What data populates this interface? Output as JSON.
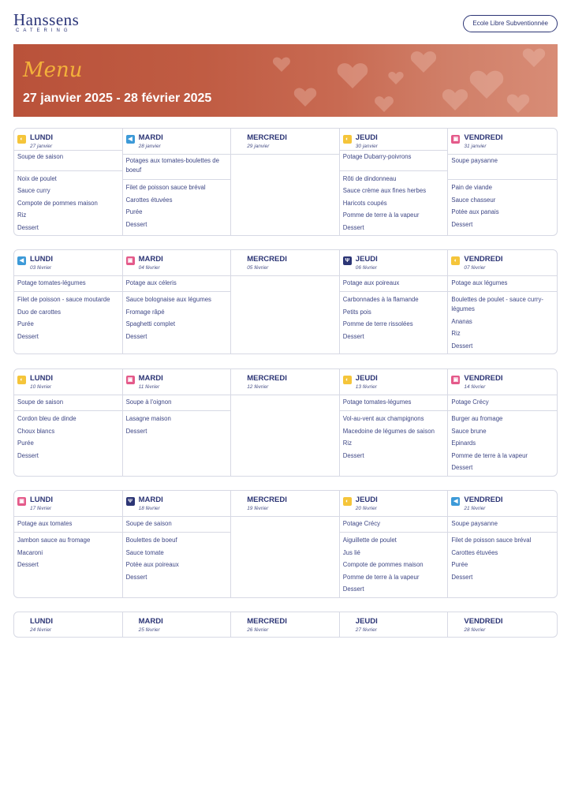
{
  "brand": {
    "name": "Hanssens",
    "sub": "CATERING"
  },
  "school": "Ecole Libre Subventionnée",
  "banner": {
    "title": "Menu",
    "dates": "27 janvier 2025 - 28 février 2025"
  },
  "weeks": [
    {
      "days": [
        {
          "name": "LUNDI",
          "date": "27 janvier",
          "icon": "y",
          "soup": "Soupe de saison",
          "dishes": [
            "Noix de poulet",
            "Sauce curry",
            "Compote de pommes maison",
            "Riz",
            "Dessert"
          ]
        },
        {
          "name": "MARDI",
          "date": "28 janvier",
          "icon": "b",
          "soup": "Potages aux tomates-boulettes de boeuf",
          "dishes": [
            "Filet de poisson sauce bréval",
            "Carottes étuvées",
            "Purée",
            "Dessert"
          ]
        },
        {
          "name": "MERCREDI",
          "date": "29 janvier",
          "icon": "",
          "soup": "",
          "dishes": []
        },
        {
          "name": "JEUDI",
          "date": "30 janvier",
          "icon": "y",
          "soup": "Potage Dubarry-poivrons",
          "dishes": [
            "Rôti de dindonneau",
            "Sauce crème aux fines herbes",
            "Haricots coupés",
            "Pomme de terre à la vapeur",
            "Dessert"
          ]
        },
        {
          "name": "VENDREDI",
          "date": "31 janvier",
          "icon": "p",
          "soup": "Soupe paysanne",
          "dishes": [
            "Pain de viande",
            "Sauce chasseur",
            "Potée aux panais",
            "Dessert"
          ]
        }
      ]
    },
    {
      "days": [
        {
          "name": "LUNDI",
          "date": "03 février",
          "icon": "b",
          "soup": "Potage tomates-légumes",
          "dishes": [
            "Filet de poisson - sauce moutarde",
            "Duo de carottes",
            "Purée",
            "Dessert"
          ]
        },
        {
          "name": "MARDI",
          "date": "04 février",
          "icon": "p",
          "soup": "Potage aux céleris",
          "dishes": [
            "Sauce bolognaise aux légumes",
            "Fromage râpé",
            "Spaghetti complet",
            "Dessert"
          ]
        },
        {
          "name": "MERCREDI",
          "date": "05 février",
          "icon": "",
          "soup": "",
          "dishes": []
        },
        {
          "name": "JEUDI",
          "date": "06 février",
          "icon": "n",
          "soup": "Potage aux poireaux",
          "dishes": [
            "Carbonnades à la flamande",
            "Petits pois",
            "Pomme de terre rissolées",
            "Dessert"
          ]
        },
        {
          "name": "VENDREDI",
          "date": "07 février",
          "icon": "y",
          "soup": "Potage aux légumes",
          "dishes": [
            "Boulettes de poulet - sauce curry-légumes",
            "Ananas",
            "Riz",
            "Dessert"
          ]
        }
      ]
    },
    {
      "days": [
        {
          "name": "LUNDI",
          "date": "10 février",
          "icon": "y",
          "soup": "Soupe de saison",
          "dishes": [
            "Cordon bleu de dinde",
            "Choux blancs",
            "Purée",
            "Dessert"
          ]
        },
        {
          "name": "MARDI",
          "date": "11 février",
          "icon": "p",
          "soup": "Soupe à l'oignon",
          "dishes": [
            "Lasagne maison",
            "Dessert"
          ]
        },
        {
          "name": "MERCREDI",
          "date": "12 février",
          "icon": "",
          "soup": "",
          "dishes": []
        },
        {
          "name": "JEUDI",
          "date": "13 février",
          "icon": "y",
          "soup": "Potage tomates-légumes",
          "dishes": [
            "Vol-au-vent aux champignons",
            "Macedoine de légumes de saison",
            "Riz",
            "Dessert"
          ]
        },
        {
          "name": "VENDREDI",
          "date": "14 février",
          "icon": "p",
          "soup": "Potage Crécy",
          "dishes": [
            "Burger au fromage",
            "Sauce brune",
            "Epinards",
            "Pomme de terre à la vapeur",
            "Dessert"
          ]
        }
      ]
    },
    {
      "days": [
        {
          "name": "LUNDI",
          "date": "17 février",
          "icon": "p",
          "soup": "Potage aux tomates",
          "dishes": [
            "Jambon sauce au fromage",
            "Macaroni",
            "Dessert"
          ]
        },
        {
          "name": "MARDI",
          "date": "18 février",
          "icon": "n",
          "soup": "Soupe de saison",
          "dishes": [
            "Boulettes de boeuf",
            "Sauce tomate",
            "Potée aux poireaux",
            "Dessert"
          ]
        },
        {
          "name": "MERCREDI",
          "date": "19 février",
          "icon": "",
          "soup": "",
          "dishes": []
        },
        {
          "name": "JEUDI",
          "date": "20 février",
          "icon": "y",
          "soup": "Potage Crécy",
          "dishes": [
            "Aiguillette de poulet",
            "Jus lié",
            "Compote de pommes maison",
            "Pomme de terre à la vapeur",
            "Dessert"
          ]
        },
        {
          "name": "VENDREDI",
          "date": "21 février",
          "icon": "b",
          "soup": "Soupe paysanne",
          "dishes": [
            "Filet de poisson sauce bréval",
            "Carottes étuvées",
            "Purée",
            "Dessert"
          ]
        }
      ]
    },
    {
      "days": [
        {
          "name": "LUNDI",
          "date": "24 février",
          "icon": "",
          "soup": "",
          "dishes": []
        },
        {
          "name": "MARDI",
          "date": "25 février",
          "icon": "",
          "soup": "",
          "dishes": []
        },
        {
          "name": "MERCREDI",
          "date": "26 février",
          "icon": "",
          "soup": "",
          "dishes": []
        },
        {
          "name": "JEUDI",
          "date": "27 février",
          "icon": "",
          "soup": "",
          "dishes": []
        },
        {
          "name": "VENDREDI",
          "date": "28 février",
          "icon": "",
          "soup": "",
          "dishes": []
        }
      ]
    }
  ]
}
